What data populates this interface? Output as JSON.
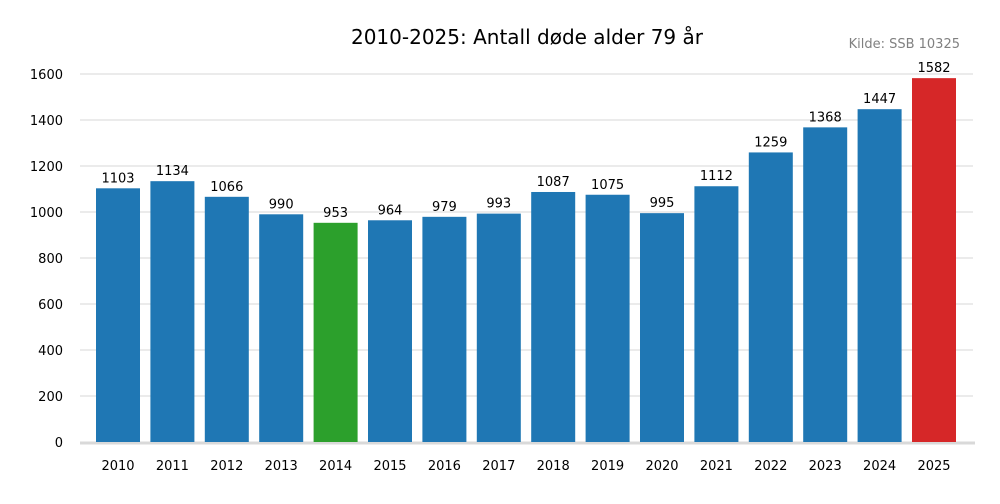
{
  "chart_data": {
    "type": "bar",
    "title": "2010-2025: Antall døde alder 79 år",
    "source": "Kilde: SSB 10325",
    "xlabel": "",
    "ylabel": "",
    "ylim": [
      0,
      1600
    ],
    "yticks": [
      0,
      200,
      400,
      600,
      800,
      1000,
      1200,
      1400,
      1600
    ],
    "grid": "horizontal",
    "categories": [
      "2010",
      "2011",
      "2012",
      "2013",
      "2014",
      "2015",
      "2016",
      "2017",
      "2018",
      "2019",
      "2020",
      "2021",
      "2022",
      "2023",
      "2024",
      "2025"
    ],
    "values": [
      1103,
      1134,
      1066,
      990,
      953,
      964,
      979,
      993,
      1087,
      1075,
      995,
      1112,
      1259,
      1368,
      1447,
      1582
    ],
    "colors": {
      "default": "#1f77b4",
      "highlight_min": "#2ca02c",
      "highlight_max": "#d62728",
      "grid": "#ebebeb",
      "axis": "#d9d9d9"
    },
    "highlights": {
      "2014": "highlight_min",
      "2025": "highlight_max"
    }
  }
}
